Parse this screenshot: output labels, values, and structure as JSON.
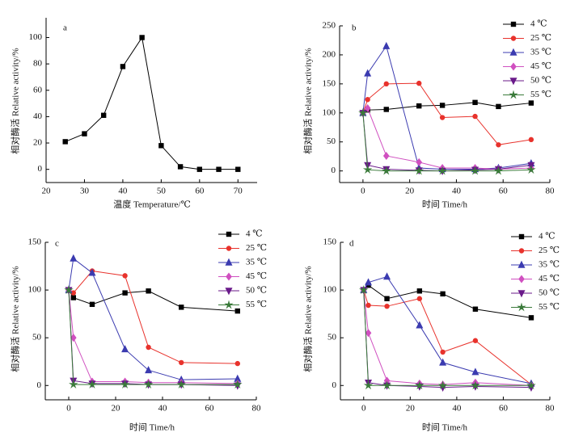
{
  "chart_data": [
    {
      "type": "line",
      "panel_label": "a",
      "x_label": "温度 Temperature/℃",
      "y_label": "相对酶活 Relative activity/%",
      "x": [
        25,
        30,
        35,
        40,
        45,
        50,
        55,
        60,
        65,
        70
      ],
      "values": [
        21,
        27,
        41,
        78,
        100,
        18,
        2,
        0,
        0,
        0
      ],
      "color": "#000000",
      "marker": "square",
      "xlim": [
        20,
        75
      ],
      "ylim": [
        -10,
        115
      ],
      "xticks": [
        20,
        30,
        40,
        50,
        60,
        70
      ],
      "yticks": [
        0,
        20,
        40,
        60,
        80,
        100
      ]
    },
    {
      "type": "line",
      "panel_label": "b",
      "x_label": "时间 Time/h",
      "y_label": "相对酶活 Relative activity/%",
      "x": [
        0,
        2,
        10,
        24,
        34,
        48,
        58,
        72
      ],
      "series": [
        {
          "name": "4 ℃",
          "color": "#000000",
          "marker": "square",
          "values": [
            100,
            105,
            106,
            112,
            113,
            118,
            111,
            117
          ]
        },
        {
          "name": "25 ℃",
          "color": "#e8322c",
          "marker": "circle",
          "values": [
            100,
            123,
            150,
            151,
            92,
            94,
            45,
            54
          ]
        },
        {
          "name": "35 ℃",
          "color": "#3b3bb0",
          "marker": "triangle",
          "values": [
            100,
            168,
            215,
            5,
            3,
            3,
            5,
            13
          ]
        },
        {
          "name": "45 ℃",
          "color": "#d050c0",
          "marker": "diamond",
          "values": [
            100,
            108,
            26,
            15,
            5,
            5,
            3,
            5
          ]
        },
        {
          "name": "50 ℃",
          "color": "#6a1a8a",
          "marker": "triangle-down",
          "values": [
            100,
            10,
            3,
            1,
            0,
            2,
            3,
            10
          ]
        },
        {
          "name": "55 ℃",
          "color": "#3a7a3a",
          "marker": "star",
          "values": [
            100,
            2,
            0,
            0,
            0,
            0,
            0,
            2
          ]
        }
      ],
      "xlim": [
        -10,
        80
      ],
      "ylim": [
        -20,
        250
      ],
      "xticks": [
        0,
        20,
        40,
        60,
        80
      ],
      "yticks": [
        0,
        50,
        100,
        150,
        200,
        250
      ],
      "legend": "upper right"
    },
    {
      "type": "line",
      "panel_label": "c",
      "x_label": "时间 Time/h",
      "y_label": "相对酶活 Relative activity/%",
      "x": [
        0,
        2,
        10,
        24,
        34,
        48,
        72
      ],
      "series": [
        {
          "name": "4 ℃",
          "color": "#000000",
          "marker": "square",
          "values": [
            100,
            92,
            85,
            97,
            99,
            82,
            78
          ]
        },
        {
          "name": "25 ℃",
          "color": "#e8322c",
          "marker": "circle",
          "values": [
            100,
            97,
            120,
            115,
            40,
            24,
            23
          ]
        },
        {
          "name": "35 ℃",
          "color": "#3b3bb0",
          "marker": "triangle",
          "values": [
            100,
            133,
            118,
            38,
            16,
            6,
            7
          ]
        },
        {
          "name": "45 ℃",
          "color": "#d050c0",
          "marker": "diamond",
          "values": [
            100,
            50,
            4,
            4,
            3,
            3,
            2
          ]
        },
        {
          "name": "50 ℃",
          "color": "#6a1a8a",
          "marker": "triangle-down",
          "values": [
            100,
            5,
            2,
            2,
            1,
            1,
            0
          ]
        },
        {
          "name": "55 ℃",
          "color": "#3a7a3a",
          "marker": "star",
          "values": [
            100,
            1,
            1,
            1,
            1,
            1,
            1
          ]
        }
      ],
      "xlim": [
        -10,
        80
      ],
      "ylim": [
        -15,
        150
      ],
      "xticks": [
        0,
        20,
        40,
        60,
        80
      ],
      "yticks": [
        0,
        50,
        100,
        150
      ],
      "legend": "upper right"
    },
    {
      "type": "line",
      "panel_label": "d",
      "x_label": "时间 Time/h",
      "y_label": "相对酶活 Relative activity/%",
      "x": [
        0,
        2,
        10,
        24,
        34,
        48,
        72
      ],
      "series": [
        {
          "name": "4 ℃",
          "color": "#000000",
          "marker": "square",
          "values": [
            100,
            105,
            91,
            99,
            96,
            80,
            71
          ]
        },
        {
          "name": "25 ℃",
          "color": "#e8322c",
          "marker": "circle",
          "values": [
            100,
            84,
            83,
            91,
            35,
            47,
            1
          ]
        },
        {
          "name": "35 ℃",
          "color": "#3b3bb0",
          "marker": "triangle",
          "values": [
            100,
            108,
            114,
            63,
            24,
            14,
            2
          ]
        },
        {
          "name": "45 ℃",
          "color": "#d050c0",
          "marker": "diamond",
          "values": [
            100,
            55,
            5,
            2,
            1,
            3,
            0
          ]
        },
        {
          "name": "50 ℃",
          "color": "#6a1a8a",
          "marker": "triangle-down",
          "values": [
            100,
            3,
            0,
            -1,
            -2,
            -1,
            -2
          ]
        },
        {
          "name": "55 ℃",
          "color": "#3a7a3a",
          "marker": "star",
          "values": [
            100,
            0,
            0,
            0,
            0,
            0,
            0
          ]
        }
      ],
      "xlim": [
        -10,
        80
      ],
      "ylim": [
        -15,
        150
      ],
      "xticks": [
        0,
        20,
        40,
        60,
        80
      ],
      "yticks": [
        0,
        50,
        100,
        150
      ],
      "legend": "upper right"
    }
  ]
}
